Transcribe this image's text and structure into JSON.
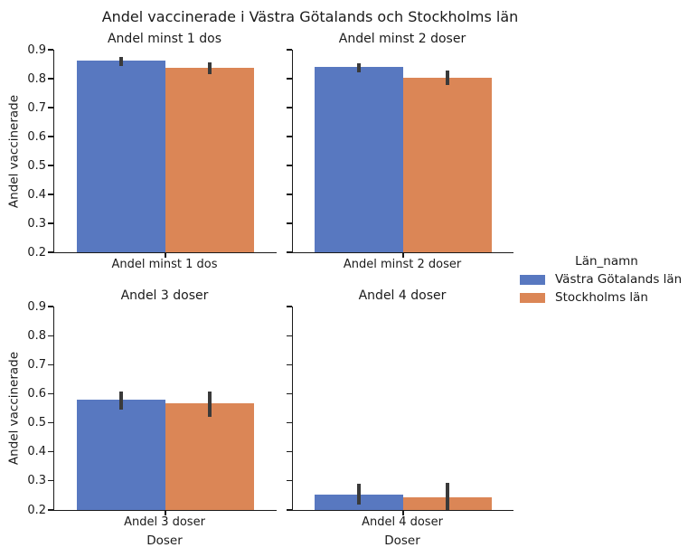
{
  "figure": {
    "title": "Andel vaccinerade i Västra Götalands och Stockholms län",
    "background_color": "#ffffff",
    "text_color": "#1a1a1a"
  },
  "chart_data": {
    "type": "bar",
    "title": "Andel vaccinerade i Västra Götalands och Stockholms län",
    "ylabel": "Andel vaccinerade",
    "xlabel": "Doser",
    "ylim": [
      0.2,
      0.9
    ],
    "yticks": [
      0.9,
      0.8,
      0.7,
      0.6,
      0.5,
      0.4,
      0.3,
      0.2
    ],
    "grid": false,
    "error_bar_color": "#3a3a3a",
    "legend": {
      "title": "Län_namn",
      "position": "right",
      "entries": [
        {
          "label": "Västra Götalands län",
          "color": "#5878c0"
        },
        {
          "label": "Stockholms län",
          "color": "#db8656"
        }
      ]
    },
    "facets": [
      {
        "title": "Andel minst 1 dos",
        "category": "Andel minst 1 dos",
        "bars": [
          {
            "series": "Västra Götalands län",
            "value": 0.861,
            "ci": [
              0.845,
              0.874
            ]
          },
          {
            "series": "Stockholms län",
            "value": 0.836,
            "ci": [
              0.815,
              0.855
            ]
          }
        ]
      },
      {
        "title": "Andel minst 2 doser",
        "category": "Andel minst 2 doser",
        "bars": [
          {
            "series": "Västra Götalands län",
            "value": 0.84,
            "ci": [
              0.822,
              0.853
            ]
          },
          {
            "series": "Stockholms län",
            "value": 0.804,
            "ci": [
              0.778,
              0.829
            ]
          }
        ]
      },
      {
        "title": "Andel 3 doser",
        "category": "Andel 3 doser",
        "bars": [
          {
            "series": "Västra Götalands län",
            "value": 0.581,
            "ci": [
              0.546,
              0.609
            ]
          },
          {
            "series": "Stockholms län",
            "value": 0.567,
            "ci": [
              0.52,
              0.609
            ]
          }
        ]
      },
      {
        "title": "Andel 4 doser",
        "category": "Andel 4 doser",
        "bars": [
          {
            "series": "Västra Götalands län",
            "value": 0.254,
            "ci": [
              0.219,
              0.289
            ]
          },
          {
            "series": "Stockholms län",
            "value": 0.245,
            "ci": [
              0.2,
              0.293
            ]
          }
        ]
      }
    ]
  }
}
